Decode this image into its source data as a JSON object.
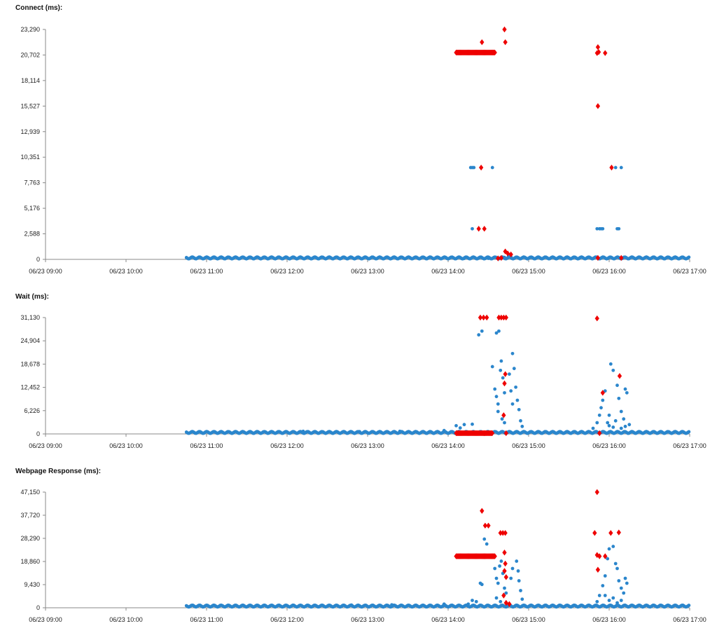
{
  "colors": {
    "series_ok": "#2b86cc",
    "series_err": "#ee0000",
    "axis": "#888888"
  },
  "x_axis": {
    "range_hours": [
      9,
      17
    ],
    "ticks": [
      {
        "value": 9,
        "label": "06/23 09:00"
      },
      {
        "value": 10,
        "label": "06/23 10:00"
      },
      {
        "value": 11,
        "label": "06/23 11:00"
      },
      {
        "value": 12,
        "label": "06/23 12:00"
      },
      {
        "value": 13,
        "label": "06/23 13:00"
      },
      {
        "value": 14,
        "label": "06/23 14:00"
      },
      {
        "value": 15,
        "label": "06/23 15:00"
      },
      {
        "value": 16,
        "label": "06/23 16:00"
      },
      {
        "value": 17,
        "label": "06/23 17:00"
      }
    ]
  },
  "chart_data": [
    {
      "type": "scatter",
      "title": "Connect (ms):",
      "ylim": [
        0,
        23290
      ],
      "yticks": [
        {
          "value": 0,
          "label": "0"
        },
        {
          "value": 2588,
          "label": "2,588"
        },
        {
          "value": 5176,
          "label": "5,176"
        },
        {
          "value": 7763,
          "label": "7,763"
        },
        {
          "value": 10351,
          "label": "10,351"
        },
        {
          "value": 12939,
          "label": "12,939"
        },
        {
          "value": 15527,
          "label": "15,527"
        },
        {
          "value": 18114,
          "label": "18,114"
        },
        {
          "value": 20702,
          "label": "20,702"
        },
        {
          "value": 23290,
          "label": "23,290"
        }
      ],
      "baseline": {
        "from": 10.75,
        "to": 17.0,
        "value": 150
      },
      "series": [
        {
          "name": "ok",
          "marker": "dot",
          "points": [
            [
              14.28,
              9300
            ],
            [
              14.3,
              9300
            ],
            [
              14.32,
              9300
            ],
            [
              14.55,
              9300
            ],
            [
              14.3,
              3100
            ],
            [
              15.85,
              3100
            ],
            [
              15.88,
              3100
            ],
            [
              15.9,
              3100
            ],
            [
              15.92,
              3100
            ],
            [
              16.1,
              3100
            ],
            [
              16.12,
              3100
            ],
            [
              16.08,
              9300
            ],
            [
              16.15,
              9300
            ],
            [
              14.7,
              200
            ],
            [
              14.75,
              300
            ],
            [
              14.78,
              250
            ],
            [
              14.5,
              100
            ],
            [
              14.35,
              80
            ],
            [
              14.2,
              90
            ]
          ]
        },
        {
          "name": "error",
          "marker": "diamond",
          "points": [
            [
              14.42,
              22000
            ],
            [
              14.7,
              23290
            ],
            [
              14.71,
              22000
            ],
            [
              14.41,
              9300
            ],
            [
              14.38,
              3100
            ],
            [
              14.45,
              3100
            ],
            [
              14.71,
              800
            ],
            [
              14.74,
              600
            ],
            [
              14.78,
              500
            ],
            [
              14.62,
              100
            ],
            [
              14.66,
              150
            ],
            [
              15.86,
              21500
            ],
            [
              15.87,
              21000
            ],
            [
              15.85,
              20900
            ],
            [
              15.95,
              20900
            ],
            [
              15.86,
              15527
            ],
            [
              16.03,
              9300
            ],
            [
              15.86,
              150
            ],
            [
              16.15,
              150
            ]
          ]
        },
        {
          "name": "error-cluster",
          "marker": "diamond",
          "from": 14.1,
          "to": 14.58,
          "value": 20950
        }
      ]
    },
    {
      "type": "scatter",
      "title": "Wait (ms):",
      "ylim": [
        0,
        31130
      ],
      "yticks": [
        {
          "value": 0,
          "label": "0"
        },
        {
          "value": 6226,
          "label": "6,226"
        },
        {
          "value": 12452,
          "label": "12,452"
        },
        {
          "value": 18678,
          "label": "18,678"
        },
        {
          "value": 24904,
          "label": "24,904"
        },
        {
          "value": 31130,
          "label": "31,130"
        }
      ],
      "baseline": {
        "from": 10.75,
        "to": 17.0,
        "value": 400
      },
      "series": [
        {
          "name": "ok",
          "marker": "dot",
          "points": [
            [
              14.38,
              26500
            ],
            [
              14.42,
              27500
            ],
            [
              14.6,
              27000
            ],
            [
              14.63,
              27500
            ],
            [
              14.55,
              18000
            ],
            [
              14.58,
              12000
            ],
            [
              14.6,
              10000
            ],
            [
              14.62,
              8000
            ],
            [
              14.65,
              17000
            ],
            [
              14.66,
              19500
            ],
            [
              14.68,
              15000
            ],
            [
              14.7,
              11000
            ],
            [
              14.62,
              6000
            ],
            [
              14.67,
              4000
            ],
            [
              14.7,
              3000
            ],
            [
              14.8,
              21500
            ],
            [
              14.82,
              17500
            ],
            [
              14.84,
              12500
            ],
            [
              14.86,
              9000
            ],
            [
              14.88,
              6500
            ],
            [
              14.9,
              3500
            ],
            [
              14.92,
              2000
            ],
            [
              14.76,
              16000
            ],
            [
              14.78,
              11500
            ],
            [
              14.8,
              8000
            ],
            [
              14.1,
              2200
            ],
            [
              14.2,
              2500
            ],
            [
              14.3,
              2600
            ],
            [
              14.15,
              1600
            ],
            [
              13.95,
              900
            ],
            [
              13.4,
              700
            ],
            [
              12.9,
              600
            ],
            [
              12.2,
              700
            ],
            [
              15.8,
              1500
            ],
            [
              15.85,
              3000
            ],
            [
              15.88,
              5000
            ],
            [
              15.92,
              9000
            ],
            [
              15.95,
              11500
            ],
            [
              15.9,
              7000
            ],
            [
              16.02,
              18700
            ],
            [
              16.05,
              17000
            ],
            [
              16.1,
              13000
            ],
            [
              16.12,
              9500
            ],
            [
              16.15,
              6000
            ],
            [
              16.18,
              4000
            ],
            [
              16.2,
              12000
            ],
            [
              16.22,
              11000
            ],
            [
              16.25,
              2500
            ],
            [
              16.0,
              2200
            ],
            [
              16.05,
              1800
            ],
            [
              16.08,
              3500
            ],
            [
              16.15,
              1500
            ],
            [
              16.2,
              2000
            ],
            [
              15.98,
              3000
            ],
            [
              16.0,
              5000
            ]
          ]
        },
        {
          "name": "error",
          "marker": "diamond",
          "points": [
            [
              14.4,
              31130
            ],
            [
              14.44,
              31130
            ],
            [
              14.48,
              31130
            ],
            [
              14.63,
              31130
            ],
            [
              14.66,
              31130
            ],
            [
              14.69,
              31130
            ],
            [
              14.72,
              31130
            ],
            [
              14.71,
              16000
            ],
            [
              14.7,
              13500
            ],
            [
              14.69,
              5000
            ],
            [
              14.45,
              200
            ],
            [
              14.72,
              200
            ],
            [
              15.85,
              30900
            ],
            [
              15.92,
              11000
            ],
            [
              16.13,
              15500
            ],
            [
              15.88,
              200
            ]
          ]
        },
        {
          "name": "error-cluster",
          "marker": "diamond",
          "from": 14.1,
          "to": 14.55,
          "value": 200
        }
      ]
    },
    {
      "type": "scatter",
      "title": "Webpage Response (ms):",
      "ylim": [
        0,
        47150
      ],
      "yticks": [
        {
          "value": 0,
          "label": "0"
        },
        {
          "value": 9430,
          "label": "9,430"
        },
        {
          "value": 18860,
          "label": "18,860"
        },
        {
          "value": 28290,
          "label": "28,290"
        },
        {
          "value": 37720,
          "label": "37,720"
        },
        {
          "value": 47150,
          "label": "47,150"
        }
      ],
      "baseline": {
        "from": 10.75,
        "to": 17.0,
        "value": 700
      },
      "series": [
        {
          "name": "ok",
          "marker": "dot",
          "points": [
            [
              14.4,
              10000
            ],
            [
              14.42,
              9500
            ],
            [
              14.3,
              3000
            ],
            [
              14.25,
              1500
            ],
            [
              14.35,
              2500
            ],
            [
              14.45,
              28000
            ],
            [
              14.48,
              26000
            ],
            [
              14.58,
              16000
            ],
            [
              14.6,
              12000
            ],
            [
              14.62,
              10000
            ],
            [
              14.64,
              17000
            ],
            [
              14.66,
              19000
            ],
            [
              14.68,
              14000
            ],
            [
              14.7,
              8000
            ],
            [
              14.72,
              6000
            ],
            [
              14.6,
              4000
            ],
            [
              14.65,
              2500
            ],
            [
              14.85,
              19000
            ],
            [
              14.87,
              15000
            ],
            [
              14.88,
              11000
            ],
            [
              14.9,
              7000
            ],
            [
              14.92,
              3500
            ],
            [
              14.78,
              12000
            ],
            [
              14.8,
              16000
            ],
            [
              13.95,
              1500
            ],
            [
              13.3,
              1200
            ],
            [
              12.8,
              1100
            ],
            [
              15.85,
              2500
            ],
            [
              15.88,
              5000
            ],
            [
              15.92,
              9000
            ],
            [
              15.95,
              13000
            ],
            [
              15.98,
              20000
            ],
            [
              16.0,
              24000
            ],
            [
              16.05,
              25000
            ],
            [
              16.08,
              18000
            ],
            [
              16.1,
              16000
            ],
            [
              16.12,
              11000
            ],
            [
              16.15,
              8000
            ],
            [
              16.18,
              6000
            ],
            [
              16.2,
              12000
            ],
            [
              16.22,
              10000
            ],
            [
              16.0,
              3000
            ],
            [
              16.05,
              4000
            ],
            [
              16.1,
              2000
            ],
            [
              16.15,
              3000
            ],
            [
              15.95,
              5000
            ]
          ]
        },
        {
          "name": "error",
          "marker": "diamond",
          "points": [
            [
              14.42,
              39500
            ],
            [
              14.46,
              33500
            ],
            [
              14.5,
              33500
            ],
            [
              14.65,
              30500
            ],
            [
              14.68,
              30500
            ],
            [
              14.71,
              30500
            ],
            [
              14.7,
              22500
            ],
            [
              14.71,
              18000
            ],
            [
              14.7,
              15000
            ],
            [
              14.72,
              12500
            ],
            [
              14.69,
              5000
            ],
            [
              14.72,
              2000
            ],
            [
              14.76,
              1500
            ],
            [
              15.85,
              47150
            ],
            [
              15.82,
              30500
            ],
            [
              15.85,
              21500
            ],
            [
              15.88,
              21000
            ],
            [
              15.95,
              21000
            ],
            [
              15.86,
              15500
            ],
            [
              16.02,
              30500
            ],
            [
              16.12,
              30700
            ]
          ]
        },
        {
          "name": "error-cluster",
          "marker": "diamond",
          "from": 14.1,
          "to": 14.58,
          "value": 21000
        }
      ]
    }
  ]
}
